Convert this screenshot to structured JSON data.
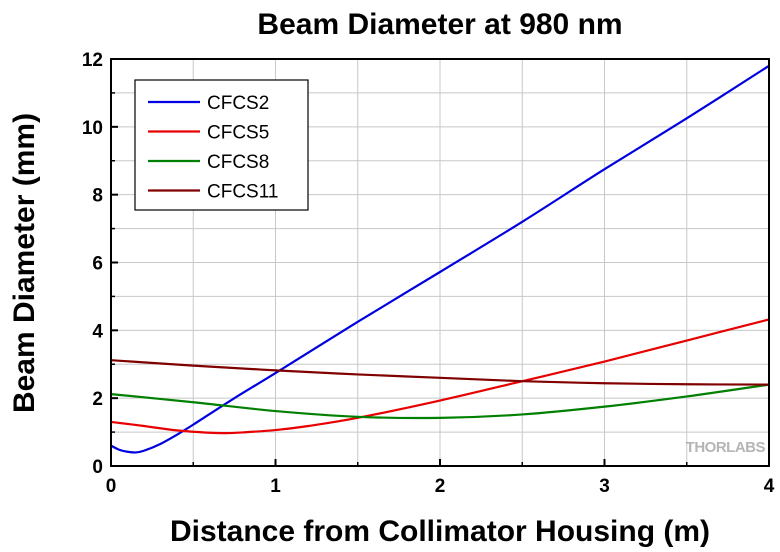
{
  "chart_data": {
    "type": "line",
    "title": "Beam Diameter at 980 nm",
    "xlabel": "Distance from Collimator Housing (m)",
    "ylabel": "Beam Diameter (mm)",
    "xlim": [
      0,
      4
    ],
    "ylim": [
      0,
      12
    ],
    "xticks": [
      "0",
      "1",
      "2",
      "3",
      "4"
    ],
    "yticks": [
      "0",
      "2",
      "4",
      "6",
      "8",
      "10",
      "12"
    ],
    "grid": true,
    "legend_position": "top-left",
    "watermark": "THORLABS",
    "series": [
      {
        "name": "CFCS2",
        "color": "#0000e0",
        "points": [
          [
            0,
            0.6
          ],
          [
            0.05,
            0.48
          ],
          [
            0.1,
            0.42
          ],
          [
            0.15,
            0.4
          ],
          [
            0.2,
            0.45
          ],
          [
            0.3,
            0.65
          ],
          [
            0.4,
            0.92
          ],
          [
            0.5,
            1.22
          ],
          [
            0.75,
            2.0
          ],
          [
            1.0,
            2.74
          ],
          [
            1.5,
            4.25
          ],
          [
            2.0,
            5.72
          ],
          [
            2.5,
            7.2
          ],
          [
            3.0,
            8.75
          ],
          [
            3.5,
            10.25
          ],
          [
            4.0,
            11.8
          ]
        ]
      },
      {
        "name": "CFCS5",
        "color": "#e80000",
        "points": [
          [
            0,
            1.3
          ],
          [
            0.2,
            1.18
          ],
          [
            0.4,
            1.05
          ],
          [
            0.6,
            0.98
          ],
          [
            0.7,
            0.97
          ],
          [
            0.8,
            0.99
          ],
          [
            1.0,
            1.06
          ],
          [
            1.2,
            1.18
          ],
          [
            1.5,
            1.42
          ],
          [
            2.0,
            1.93
          ],
          [
            2.5,
            2.5
          ],
          [
            3.0,
            3.08
          ],
          [
            3.5,
            3.7
          ],
          [
            4.0,
            4.32
          ]
        ]
      },
      {
        "name": "CFCS8",
        "color": "#008000",
        "points": [
          [
            0,
            2.12
          ],
          [
            0.5,
            1.88
          ],
          [
            1.0,
            1.62
          ],
          [
            1.5,
            1.45
          ],
          [
            2.0,
            1.42
          ],
          [
            2.5,
            1.52
          ],
          [
            3.0,
            1.75
          ],
          [
            3.5,
            2.05
          ],
          [
            4.0,
            2.4
          ]
        ]
      },
      {
        "name": "CFCS11",
        "color": "#800000",
        "points": [
          [
            0,
            3.12
          ],
          [
            0.5,
            2.96
          ],
          [
            1.0,
            2.82
          ],
          [
            1.5,
            2.7
          ],
          [
            2.0,
            2.6
          ],
          [
            2.5,
            2.5
          ],
          [
            3.0,
            2.44
          ],
          [
            3.5,
            2.41
          ],
          [
            4.0,
            2.4
          ]
        ]
      }
    ]
  }
}
